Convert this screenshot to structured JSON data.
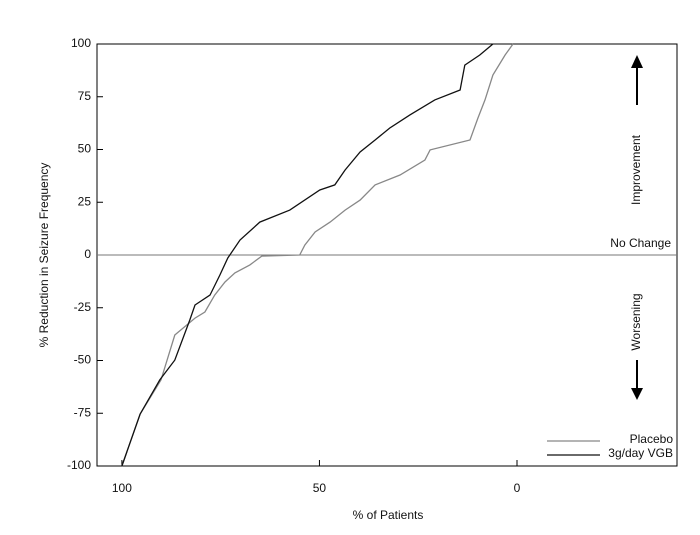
{
  "chart_data": {
    "type": "line",
    "xlabel": "% of Patients",
    "ylabel": "% Reduction in Seizure Frequency",
    "xlim": [
      106.3,
      -40.5
    ],
    "ylim": [
      -100,
      100
    ],
    "xticks": [
      100,
      50,
      0
    ],
    "yticks": [
      100,
      75,
      50,
      25,
      0,
      -25,
      -50,
      -75,
      -100
    ],
    "reference_line": {
      "label": "No Change",
      "value": 0
    },
    "annotations": {
      "up": "Improvement",
      "down": "Worsening"
    },
    "legend": "lower right",
    "series": [
      {
        "name": "Placebo",
        "color": "#888888",
        "x": [
          100,
          95.4,
          90.1,
          86.6,
          81.5,
          79,
          76.5,
          73.9,
          71.4,
          67.6,
          64.6,
          55,
          53.7,
          51.1,
          47.3,
          43.5,
          39.7,
          35.9,
          29.6,
          23.3,
          22,
          11.9,
          9.9,
          8.1,
          6.1,
          3,
          1
        ],
        "values": [
          -100,
          -75.4,
          -59.2,
          -37.9,
          -29.9,
          -27,
          -19,
          -12.8,
          -8.5,
          -4.7,
          -0.5,
          0,
          4.7,
          10.9,
          15.6,
          21.3,
          26,
          33.2,
          37.9,
          45,
          49.8,
          54.5,
          64.9,
          73.5,
          85.3,
          94.8,
          100
        ]
      },
      {
        "name": "3g/day VGB",
        "color": "#111111",
        "x": [
          100,
          95.4,
          90.4,
          86.6,
          82.8,
          81.5,
          77.7,
          75.2,
          73.2,
          70.1,
          65.1,
          57.5,
          49.9,
          46.1,
          43.5,
          39.7,
          35.9,
          32.2,
          27.1,
          20.8,
          14.4,
          13.2,
          9.4,
          6.1
        ],
        "values": [
          -100,
          -75.4,
          -59.2,
          -49.8,
          -30.8,
          -23.7,
          -19,
          -9.5,
          -1.4,
          7.1,
          15.6,
          21.3,
          30.8,
          33.2,
          40.3,
          48.8,
          54.5,
          60.2,
          66.4,
          73.5,
          78.2,
          90,
          94.8,
          100
        ]
      }
    ]
  }
}
